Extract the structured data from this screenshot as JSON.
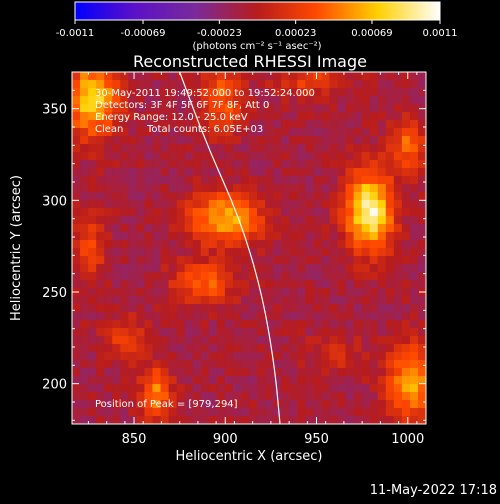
{
  "colorbar": {
    "tick_labels": [
      "-0.0011",
      "-0.00069",
      "-0.00023",
      "0.00023",
      "0.00069",
      "0.0011"
    ],
    "units_label": "(photons cm⁻² s⁻¹ asec⁻²)",
    "range": [
      -0.0011,
      0.0011
    ],
    "colors": [
      "#0000ff",
      "#5a10c8",
      "#7a2a9a",
      "#b81c1c",
      "#ff4800",
      "#ffd000",
      "#ffffff"
    ]
  },
  "chart_data": {
    "type": "heatmap",
    "title": "Reconstructed RHESSI Image",
    "xlabel": "Heliocentric X (arcsec)",
    "ylabel": "Heliocentric Y (arcsec)",
    "xlim": [
      816,
      1010
    ],
    "ylim": [
      178,
      370
    ],
    "x_ticks": [
      850,
      900,
      950,
      1000
    ],
    "y_ticks": [
      200,
      250,
      300,
      350
    ],
    "x_tick_labels": [
      "850",
      "900",
      "950",
      "1000"
    ],
    "y_tick_labels": [
      "200",
      "250",
      "300",
      "350"
    ],
    "peak": [
      979,
      294
    ],
    "limb": {
      "description_units": "arcsec",
      "points": [
        [
          875,
          370
        ],
        [
          890,
          330
        ],
        [
          908,
          290
        ],
        [
          920,
          250
        ],
        [
          927,
          210
        ],
        [
          930,
          178
        ]
      ]
    },
    "sources": [
      {
        "x": 979,
        "y": 294,
        "value": 0.0011,
        "sx": 9,
        "sy": 15
      },
      {
        "x": 900,
        "y": 290,
        "value": 0.00075,
        "sx": 14,
        "sy": 10
      },
      {
        "x": 827,
        "y": 355,
        "value": 0.0009,
        "sx": 10,
        "sy": 14
      },
      {
        "x": 898,
        "y": 355,
        "value": 0.0005,
        "sx": 8,
        "sy": 12
      },
      {
        "x": 947,
        "y": 365,
        "value": 0.00035,
        "sx": 14,
        "sy": 6
      },
      {
        "x": 1000,
        "y": 330,
        "value": 0.0005,
        "sx": 7,
        "sy": 10
      },
      {
        "x": 888,
        "y": 255,
        "value": 0.0005,
        "sx": 12,
        "sy": 8
      },
      {
        "x": 862,
        "y": 195,
        "value": 0.0006,
        "sx": 6,
        "sy": 10
      },
      {
        "x": 1003,
        "y": 200,
        "value": 0.0007,
        "sx": 10,
        "sy": 15
      },
      {
        "x": 826,
        "y": 275,
        "value": 0.0004,
        "sx": 6,
        "sy": 12
      },
      {
        "x": 960,
        "y": 215,
        "value": 0.0002,
        "sx": 12,
        "sy": 8
      },
      {
        "x": 845,
        "y": 225,
        "value": 0.00035,
        "sx": 8,
        "sy": 8
      }
    ]
  },
  "info": {
    "time": "30-May-2011 19:49:52.000 to 19:52:24.000",
    "detectors": "Detectors: 3F 4F 5F 6F 7F 8F, Att 0",
    "energy": "Energy Range: 12.0 - 25.0 keV",
    "clean_label": "Clean",
    "counts": "Total counts: 6.05E+03",
    "peak_text": "Position of Peak = [979,294]"
  },
  "timestamp": "11-May-2022 17:18"
}
